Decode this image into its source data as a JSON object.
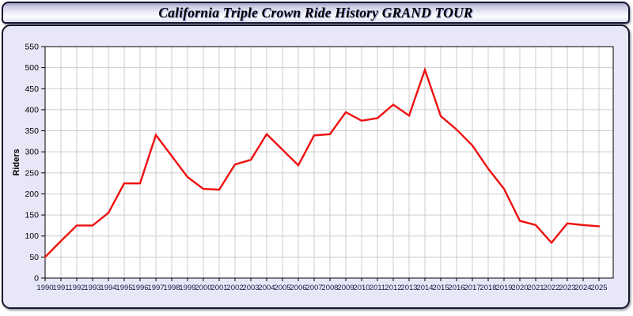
{
  "window": {
    "title": "California Triple Crown Ride History GRAND TOUR"
  },
  "chart_data": {
    "type": "line",
    "title": "California Triple Crown Ride History GRAND TOUR",
    "xlabel": "",
    "ylabel": "Riders",
    "x": [
      1990,
      1991,
      1992,
      1993,
      1994,
      1995,
      1996,
      1997,
      1998,
      1999,
      2000,
      2001,
      2002,
      2003,
      2004,
      2005,
      2006,
      2007,
      2008,
      2009,
      2010,
      2011,
      2012,
      2013,
      2014,
      2015,
      2016,
      2017,
      2018,
      2019,
      2020,
      2021,
      2022,
      2023,
      2024,
      2025
    ],
    "series": [
      {
        "name": "Riders",
        "color": "#ee1111",
        "values": [
          50,
          88,
          125,
          125,
          155,
          225,
          225,
          340,
          290,
          240,
          212,
          210,
          270,
          281,
          342,
          305,
          268,
          339,
          342,
          394,
          374,
          380,
          412,
          386,
          495,
          385,
          353,
          315,
          260,
          212,
          136,
          126,
          84,
          130,
          126,
          123
        ]
      }
    ],
    "ylim": [
      0,
      550
    ],
    "ytick_step": 50,
    "grid": true,
    "legend": "none",
    "colors": {
      "plot_bg": "#ffffff",
      "grid": "#cccccc",
      "axis": "#000000",
      "xtick_label": "#16163f",
      "ytick_label": "#000000",
      "panel_bg": "#e7e7f8"
    }
  }
}
